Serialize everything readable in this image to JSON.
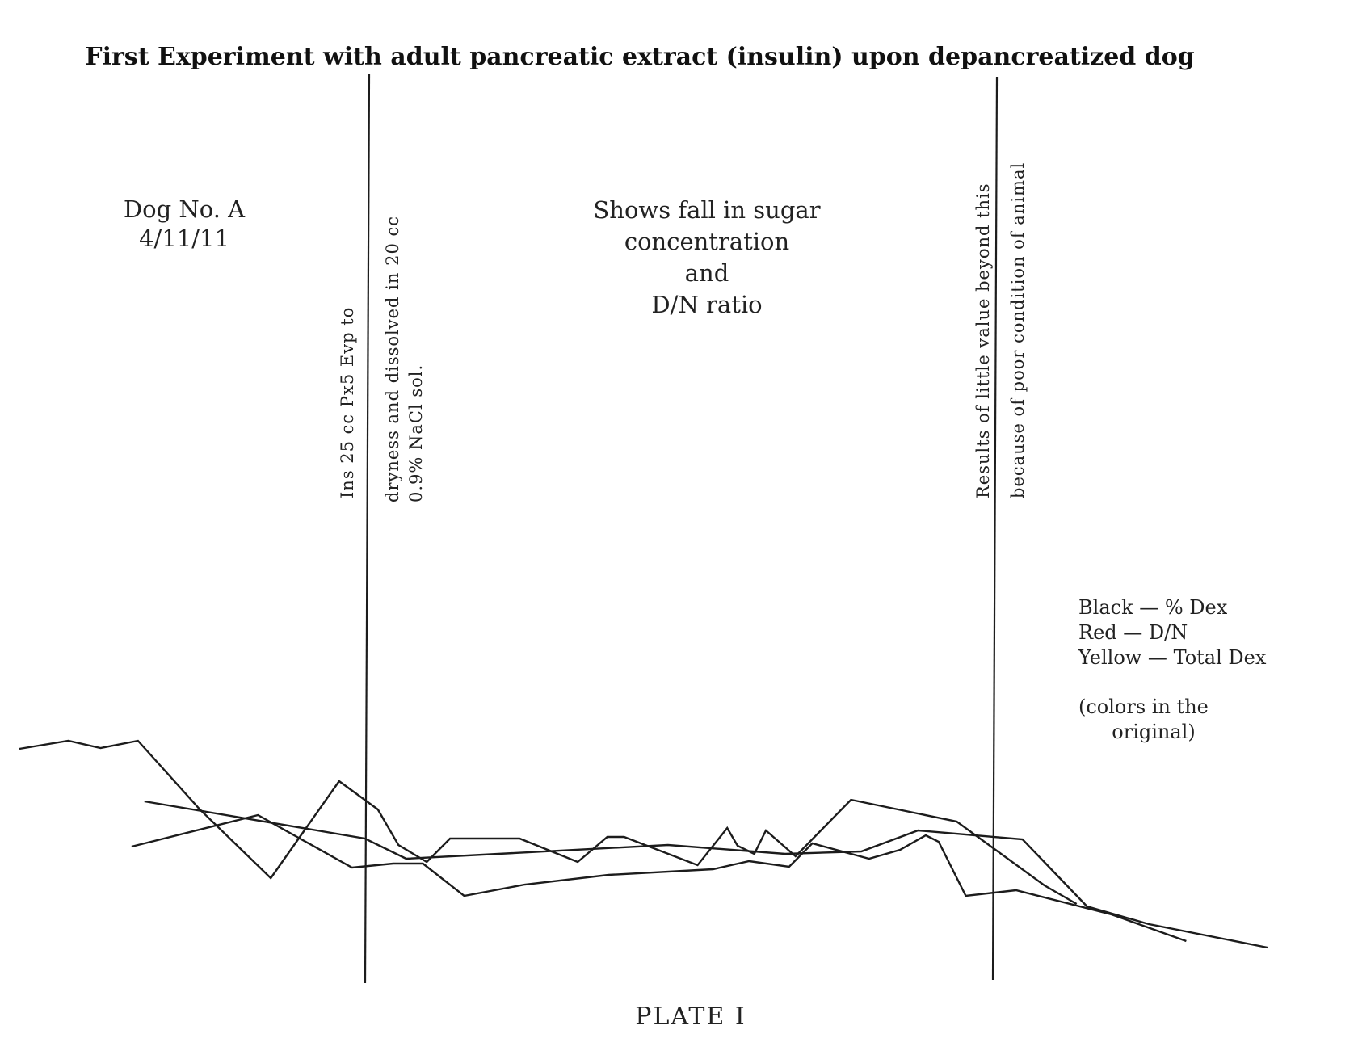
{
  "chart_data": {
    "type": "line",
    "title": "First Experiment with adult pancreatic extract (insulin) upon depancreatized dog",
    "dog_label": "Dog  No.  A",
    "date_label": "4/11/11",
    "annotation_center": [
      "Shows fall in sugar",
      "concentration",
      "and",
      "D/N  ratio"
    ],
    "vline_annotations": [
      {
        "lines": [
          "Ins  25  cc  Px5  Evp  to"
        ]
      },
      {
        "lines": [
          "dryness   and dissolved  in  20  cc",
          "0.9% NaCl sol."
        ]
      },
      {
        "lines": [
          "Results  of  little  value  beyond  this",
          "because  of  poor  condition  of  animal"
        ]
      }
    ],
    "legend": {
      "entries": [
        "Black — % Dex",
        "Red — D/N",
        "Yellow — Total Dex"
      ],
      "note": [
        "(colors in the",
        "original)"
      ]
    },
    "footer": "PLATE I",
    "axes": {
      "grid": false,
      "ticks": false,
      "x_domain": [
        0,
        100
      ],
      "y_domain": [
        0,
        100
      ]
    },
    "series": [
      {
        "x": [
          0.0,
          3.8,
          6.3,
          9.2,
          14.0,
          19.5,
          24.8,
          27.8,
          29.4,
          31.6,
          33.4,
          38.8,
          43.3,
          45.6,
          46.9,
          52.6,
          54.9,
          55.7,
          57.0,
          57.9,
          60.2,
          64.5,
          72.7,
          79.5,
          82.0
        ],
        "y": [
          62.0,
          64.0,
          62.2,
          64.0,
          47.0,
          30.0,
          54.0,
          47.0,
          38.2,
          34.0,
          39.8,
          39.8,
          34.0,
          40.2,
          40.2,
          33.2,
          42.4,
          38.0,
          36.0,
          41.8,
          35.4,
          49.4,
          44.0,
          28.2,
          23.6
        ]
      },
      {
        "x": [
          8.7,
          18.5,
          25.8,
          29.0,
          31.3,
          34.5,
          39.2,
          45.7,
          53.8,
          56.6,
          59.7,
          61.5,
          65.9,
          68.3,
          70.3,
          71.3,
          73.4,
          77.3,
          84.7,
          90.5
        ],
        "y": [
          37.8,
          45.6,
          32.6,
          33.6,
          33.6,
          25.6,
          28.4,
          30.8,
          32.2,
          34.2,
          32.8,
          38.6,
          34.8,
          37.0,
          40.6,
          39.0,
          25.6,
          27.0,
          21.0,
          14.4
        ]
      },
      {
        "x": [
          9.7,
          26.8,
          30.0,
          50.3,
          59.4,
          65.3,
          69.7,
          77.8,
          82.8,
          87.6,
          96.8
        ],
        "y": [
          49.0,
          39.8,
          34.8,
          38.2,
          36.0,
          36.6,
          41.8,
          39.6,
          23.0,
          18.6,
          12.8
        ]
      }
    ]
  }
}
